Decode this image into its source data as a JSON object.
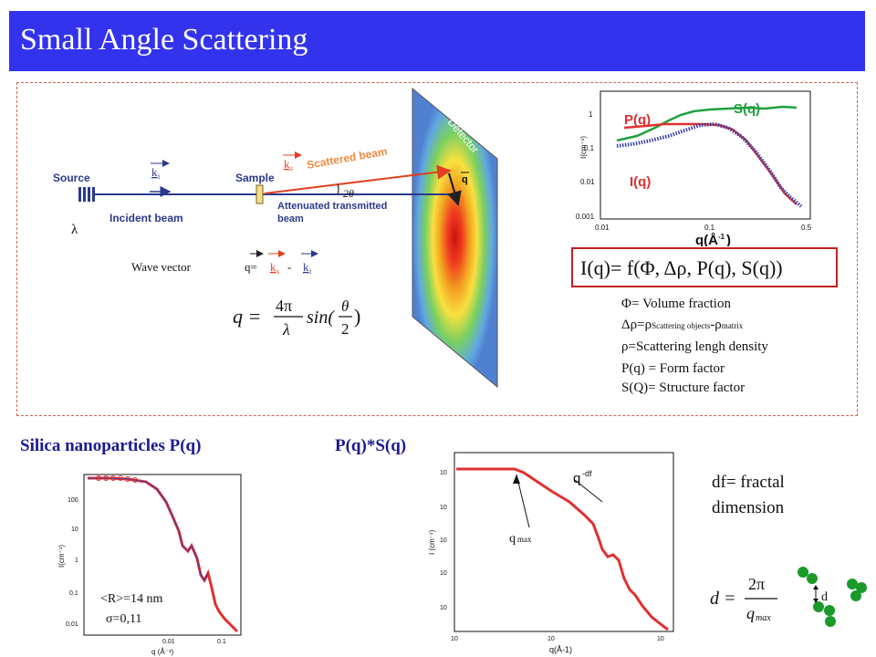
{
  "title": "Small Angle Scattering",
  "setup": {
    "source": "Source",
    "sample": "Sample",
    "detector": "Detector",
    "incident_beam": "Incident beam",
    "scattered_beam": "Scattered beam",
    "attenuated_1": "Attenuated transmitted",
    "attenuated_2": "beam",
    "lambda": "λ",
    "two_theta": "2θ",
    "q_arrow": "q",
    "ki": "k",
    "ki_sub": "i",
    "ks": "k",
    "ks_sub": "s",
    "wave_vector": "Wave vector",
    "q_eq": "q=",
    "minus": "-"
  },
  "equation": {
    "q": "q =",
    "numerator": "4π",
    "denominator": "λ",
    "sin": "sin(",
    "theta": "θ",
    "two": "2",
    "close": ")"
  },
  "top_chart": {
    "s_label": "S(q)",
    "p_label": "P(q)",
    "i_label": "I(q)",
    "xlabel": "q(Å",
    "xlabel_sup": "-1",
    "xlabel_close": ")",
    "ylabel": "I(cm⁻¹)",
    "yticks": [
      "1",
      "0.1",
      "0.01",
      "0.001"
    ],
    "xticks": [
      "0.01",
      "0.1",
      "0.5"
    ]
  },
  "formula": "I(q)= f(Φ, Δρ, P(q), S(q))",
  "legend": {
    "phi": "Φ= Volume fraction",
    "drho_a": "Δρ=ρ",
    "drho_sub1": "Scattering objects",
    "drho_b": "-ρ",
    "drho_sub2": "matrix",
    "rho": "ρ=Scattering lengh density",
    "pq": "P(q) = Form factor",
    "sq": "S(Q)= Structure factor"
  },
  "silica": {
    "title": "Silica nanoparticles P(q)",
    "r": "<R>=14 nm",
    "sigma": "σ=0,11",
    "ylabel": "I(cm⁻¹)",
    "xlabel": "q (Å⁻¹)",
    "yticks": [
      "100",
      "10",
      "1",
      "0,1",
      "0,01"
    ],
    "xticks": [
      "0.01",
      "0.1"
    ]
  },
  "pqsq": {
    "title": "P(q)*S(q)",
    "qdf": "q",
    "qdf_sup": "-df",
    "qmax": "q",
    "qmax_sub": "max",
    "ylabel": "I (cm⁻¹)",
    "xlabel": "q(Å-1)",
    "yticks": [
      "10",
      "10",
      "10",
      "10",
      "10"
    ],
    "xticks": [
      "10",
      "10",
      "10"
    ]
  },
  "fractal": {
    "line1": "df= fractal",
    "line2": "dimension",
    "d_eq": "d =",
    "two_pi": "2π",
    "qmax": "q",
    "qmax_sub": "max",
    "d_label": "d"
  },
  "colors": {
    "title_bg": "#3333ee",
    "section_title": "#1a1a90",
    "scattered": "#f08a40",
    "beam": "#2b3a8c",
    "s_curve": "#20a040",
    "p_curve": "#e03030",
    "i_curve": "#3b3fa8",
    "particle": "#1a9a2a"
  }
}
